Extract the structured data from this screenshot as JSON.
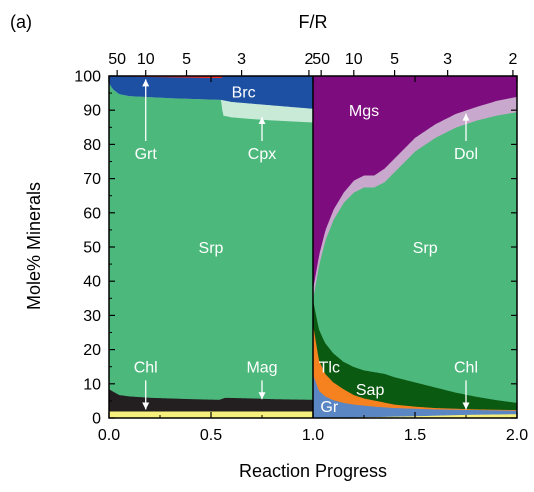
{
  "chart_data": {
    "type": "area",
    "panel_label": "(a)",
    "xlabel": "Reaction Progress",
    "ylabel": "Mole% Minerals",
    "top_axis_label": "F/R",
    "xlim": [
      0,
      2
    ],
    "ylim": [
      0,
      100
    ],
    "x_ticks": [
      "0.0",
      "0.5",
      "1.0",
      "1.5",
      "2.0"
    ],
    "y_ticks": [
      "0",
      "10",
      "20",
      "30",
      "40",
      "50",
      "60",
      "70",
      "80",
      "90",
      "100"
    ],
    "top_ticks_left": [
      {
        "label": "50",
        "x": 0.04
      },
      {
        "label": "10",
        "x": 0.18
      },
      {
        "label": "5",
        "x": 0.38
      },
      {
        "label": "3",
        "x": 0.65
      },
      {
        "label": "2",
        "x": 0.98
      }
    ],
    "top_ticks_right": [
      {
        "label": "50",
        "x": 1.04
      },
      {
        "label": "10",
        "x": 1.2
      },
      {
        "label": "5",
        "x": 1.4
      },
      {
        "label": "3",
        "x": 1.66
      },
      {
        "label": "2",
        "x": 1.98
      }
    ],
    "colors": {
      "red": "#ee2d24",
      "blue": "#1d4fa3",
      "green": "#4cb87c",
      "lightgreen": "#c8ead6",
      "black": "#231f20",
      "yellow": "#f7ef7b",
      "purple": "#7d0d7e",
      "lavender": "#c8a8cc",
      "orange": "#f5821f",
      "lightblue": "#5b86c4",
      "darkgreen": "#0b5a12"
    },
    "left_panel": {
      "x_range": [
        0,
        1
      ],
      "boundaries": [
        {
          "name": "Yellow top",
          "x": [
            0,
            0.5,
            1
          ],
          "y": [
            2,
            2,
            2
          ]
        },
        {
          "name": "Chl/Mag top",
          "x": [
            0,
            0.05,
            0.1,
            0.2,
            0.3,
            0.4,
            0.54,
            0.57,
            0.7,
            0.8,
            0.9,
            1
          ],
          "y": [
            8.5,
            6.8,
            6.4,
            6.0,
            5.8,
            5.6,
            5.4,
            6.0,
            5.8,
            5.6,
            5.5,
            5.4
          ]
        },
        {
          "name": "Srp top",
          "x": [
            0,
            0.02,
            0.05,
            0.1,
            0.2,
            0.3,
            0.4,
            0.5,
            0.55,
            0.56,
            0.6,
            0.7,
            0.8,
            0.9,
            1
          ],
          "y": [
            98,
            96.2,
            94.8,
            94.2,
            93.9,
            93.6,
            93.4,
            93.2,
            93.1,
            88.5,
            88,
            87.5,
            87.1,
            86.8,
            86.5
          ]
        },
        {
          "name": "Cpx top",
          "x": [
            0,
            0.02,
            0.05,
            0.1,
            0.2,
            0.3,
            0.4,
            0.5,
            0.55,
            0.6,
            0.7,
            0.8,
            0.9,
            1
          ],
          "y": [
            98,
            96.2,
            94.8,
            94.2,
            93.9,
            93.6,
            93.4,
            93.2,
            93.1,
            92.5,
            92,
            91.5,
            91,
            90.5
          ]
        },
        {
          "name": "Grt top",
          "x": [
            0,
            0.5,
            0.55,
            0.56,
            1
          ],
          "y": [
            100,
            99.5,
            99.5,
            100,
            100
          ]
        }
      ]
    },
    "right_panel": {
      "x_range": [
        1,
        2
      ],
      "boundaries": [
        {
          "name": "Yellow top",
          "x": [
            1,
            1.5,
            1.75,
            2
          ],
          "y": [
            0,
            0.6,
            1.0,
            1.2
          ]
        },
        {
          "name": "Gr top",
          "x": [
            1,
            1.03,
            1.06,
            1.1,
            1.15,
            1.2,
            1.3,
            1.4,
            1.5,
            1.6,
            1.7,
            1.8,
            1.9,
            2
          ],
          "y": [
            13,
            8,
            6.4,
            5.3,
            4.5,
            4.0,
            3.4,
            3.0,
            2.8,
            2.6,
            2.5,
            2.4,
            2.3,
            2.2
          ]
        },
        {
          "name": "Tlc top",
          "x": [
            1,
            1.03,
            1.06,
            1.1,
            1.15,
            1.2,
            1.25,
            1.3,
            1.35,
            1.4,
            1.5,
            1.6,
            1.7,
            1.8,
            1.9,
            2
          ],
          "y": [
            28,
            17,
            13,
            10.5,
            8.5,
            6.8,
            5.8,
            5.2,
            4.6,
            4.0,
            3.4,
            3.0,
            2.8,
            2.6,
            2.5,
            2.4
          ]
        },
        {
          "name": "Sap/Chl top",
          "x": [
            1,
            1.03,
            1.06,
            1.1,
            1.15,
            1.2,
            1.25,
            1.3,
            1.35,
            1.4,
            1.5,
            1.6,
            1.7,
            1.8,
            1.9,
            2
          ],
          "y": [
            35,
            26,
            22,
            19,
            16.5,
            15,
            14,
            13.5,
            13,
            12,
            10.5,
            9,
            7.5,
            6.3,
            5.3,
            4.5
          ]
        },
        {
          "name": "Srp top",
          "x": [
            1,
            1.03,
            1.06,
            1.1,
            1.15,
            1.2,
            1.25,
            1.3,
            1.35,
            1.4,
            1.5,
            1.6,
            1.7,
            1.8,
            1.9,
            2
          ],
          "y": [
            35,
            45,
            52,
            58,
            63,
            66,
            67.5,
            67.5,
            69,
            72,
            78,
            82,
            85,
            87,
            88.5,
            89.5
          ]
        },
        {
          "name": "Dol top",
          "x": [
            1,
            1.03,
            1.06,
            1.1,
            1.15,
            1.2,
            1.25,
            1.3,
            1.35,
            1.4,
            1.5,
            1.6,
            1.7,
            1.8,
            1.9,
            2
          ],
          "y": [
            38,
            48,
            55,
            61,
            66,
            69.5,
            71,
            71,
            73,
            76,
            82,
            86,
            89,
            91,
            92.8,
            94
          ]
        },
        {
          "name": "Mgs top",
          "x": [
            1,
            2
          ],
          "y": [
            100,
            100
          ]
        }
      ]
    },
    "layer_fills": [
      {
        "panel": "left",
        "from": null,
        "to": "Yellow top",
        "color": "yellow"
      },
      {
        "panel": "left",
        "from": "Yellow top",
        "to": "Chl/Mag top",
        "color": "black"
      },
      {
        "panel": "left",
        "from": "Chl/Mag top",
        "to": "Srp top",
        "color": "green"
      },
      {
        "panel": "left",
        "from": "Srp top",
        "to": "Cpx top",
        "color": "lightgreen"
      },
      {
        "panel": "left",
        "from": "Cpx top",
        "to": "Grt top",
        "color": "blue"
      },
      {
        "panel": "left",
        "from": "Grt top",
        "to": "top",
        "color": "red"
      },
      {
        "panel": "right",
        "from": null,
        "to": "Yellow top",
        "color": "yellow"
      },
      {
        "panel": "right",
        "from": "Yellow top",
        "to": "Gr top",
        "color": "lightblue"
      },
      {
        "panel": "right",
        "from": "Gr top",
        "to": "Tlc top",
        "color": "orange"
      },
      {
        "panel": "right",
        "from": "Tlc top",
        "to": "Sap/Chl top",
        "color": "darkgreen"
      },
      {
        "panel": "right",
        "from": "Sap/Chl top",
        "to": "Srp top",
        "color": "green"
      },
      {
        "panel": "right",
        "from": "Srp top",
        "to": "Dol top",
        "color": "lavender"
      },
      {
        "panel": "right",
        "from": "Dol top",
        "to": "Mgs top",
        "color": "purple"
      }
    ],
    "annotations": [
      {
        "text": "Brc",
        "x": 0.66,
        "y": 95.5,
        "color": "#ffffff"
      },
      {
        "text": "Grt",
        "x": 0.18,
        "y": 77.5,
        "color": "#ffffff",
        "arrow_from": [
          0.18,
          81
        ],
        "arrow_to": [
          0.18,
          99
        ]
      },
      {
        "text": "Cpx",
        "x": 0.75,
        "y": 77.5,
        "color": "#ffffff",
        "arrow_from": [
          0.75,
          81
        ],
        "arrow_to": [
          0.75,
          88
        ]
      },
      {
        "text": "Srp",
        "x": 0.5,
        "y": 50,
        "color": "#ffffff"
      },
      {
        "text": "Chl",
        "x": 0.18,
        "y": 15,
        "color": "#ffffff",
        "arrow_from": [
          0.18,
          11
        ],
        "arrow_to": [
          0.18,
          2.5
        ]
      },
      {
        "text": "Mag",
        "x": 0.75,
        "y": 15,
        "color": "#ffffff",
        "arrow_from": [
          0.75,
          11
        ],
        "arrow_to": [
          0.75,
          5.5
        ]
      },
      {
        "text": "Mgs",
        "x": 1.25,
        "y": 90,
        "color": "#ffffff"
      },
      {
        "text": "Dol",
        "x": 1.75,
        "y": 77.5,
        "color": "#ffffff",
        "arrow_from": [
          1.75,
          81
        ],
        "arrow_to": [
          1.75,
          89
        ]
      },
      {
        "text": "Srp",
        "x": 1.55,
        "y": 50,
        "color": "#ffffff"
      },
      {
        "text": "Chl",
        "x": 1.75,
        "y": 15,
        "color": "#ffffff",
        "arrow_from": [
          1.75,
          11
        ],
        "arrow_to": [
          1.75,
          2.5
        ]
      },
      {
        "text": "Tlc",
        "x": 1.08,
        "y": 15,
        "color": "#ffffff"
      },
      {
        "text": "Sap",
        "x": 1.28,
        "y": 8.5,
        "color": "#ffffff"
      },
      {
        "text": "Gr",
        "x": 1.08,
        "y": 3.5,
        "color": "#ffffff"
      }
    ]
  }
}
